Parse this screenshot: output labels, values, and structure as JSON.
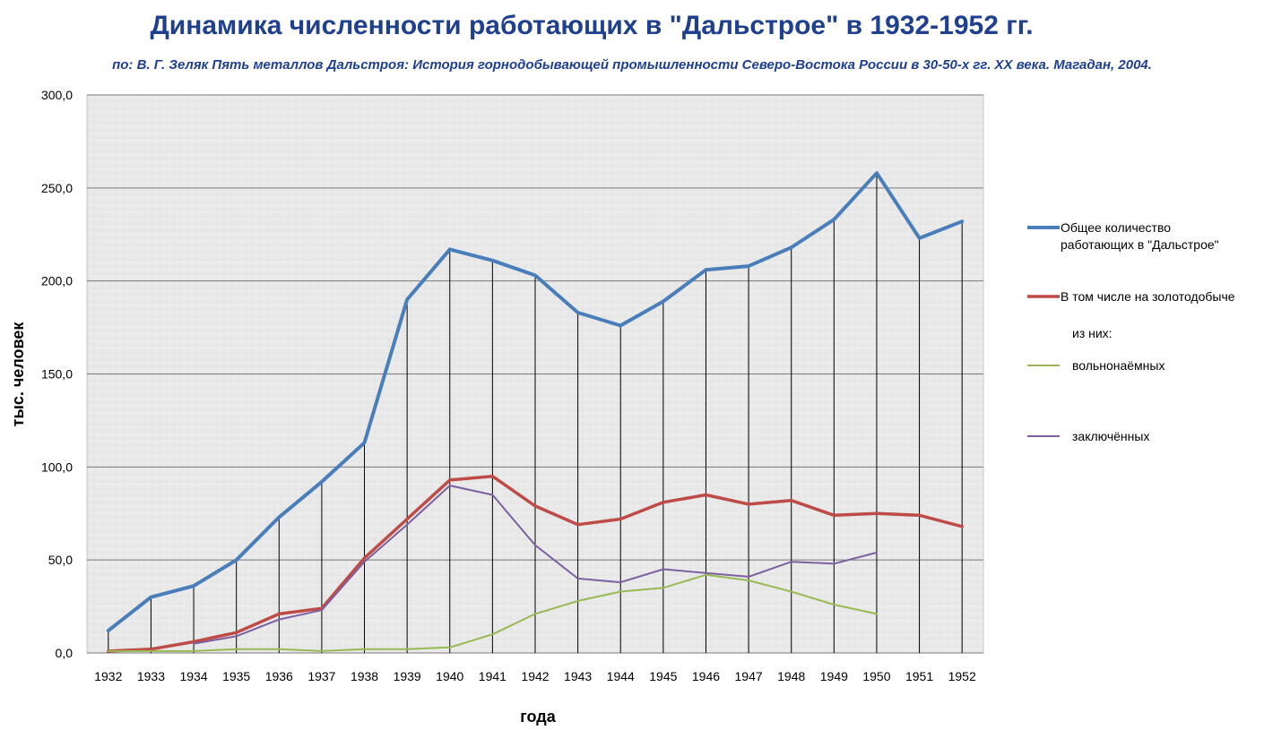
{
  "title": "Динамика численности работающих в \"Дальстрое\" в 1932-1952 гг.",
  "subtitle": "по: В. Г. Зеляк Пять металлов Дальстроя: История горнодобывающей промышленности Северо-Востока России в 30-50-х гг. XX века. Магадан, 2004.",
  "chart_data": {
    "type": "line",
    "xlabel": "года",
    "ylabel": "тыс. человек",
    "ylim": [
      0,
      300
    ],
    "yticks": [
      "0,0",
      "50,0",
      "100,0",
      "150,0",
      "200,0",
      "250,0",
      "300,0"
    ],
    "categories": [
      "1932",
      "1933",
      "1934",
      "1935",
      "1936",
      "1937",
      "1938",
      "1939",
      "1940",
      "1941",
      "1942",
      "1943",
      "1944",
      "1945",
      "1946",
      "1947",
      "1948",
      "1949",
      "1950",
      "1951",
      "1952"
    ],
    "grid": true,
    "legend_position": "right",
    "legend_note": "из них:",
    "series": [
      {
        "name": "Общее количество работающих в \"Дальстрое\"",
        "color": "#4a7ebb",
        "values": [
          12,
          30,
          36,
          50,
          73,
          92,
          113,
          190,
          217,
          211,
          203,
          183,
          176,
          189,
          206,
          208,
          218,
          233,
          258,
          223,
          232
        ]
      },
      {
        "name": "В том числе на золотодобыче",
        "color": "#be4b48",
        "values": [
          1,
          2,
          6,
          11,
          21,
          24,
          51,
          72,
          93,
          95,
          79,
          69,
          72,
          81,
          85,
          80,
          82,
          74,
          75,
          74,
          68
        ]
      },
      {
        "name": "вольнонаёмных",
        "color": "#98b954",
        "values": [
          1,
          1,
          1,
          2,
          2,
          1,
          2,
          2,
          3,
          10,
          21,
          28,
          33,
          35,
          42,
          39,
          33,
          26,
          21,
          null,
          null
        ]
      },
      {
        "name": "заключённых",
        "color": "#7d60a0",
        "values": [
          null,
          null,
          5,
          9,
          18,
          23,
          49,
          69,
          90,
          85,
          58,
          40,
          38,
          45,
          43,
          41,
          49,
          48,
          54,
          null,
          null
        ]
      }
    ]
  }
}
